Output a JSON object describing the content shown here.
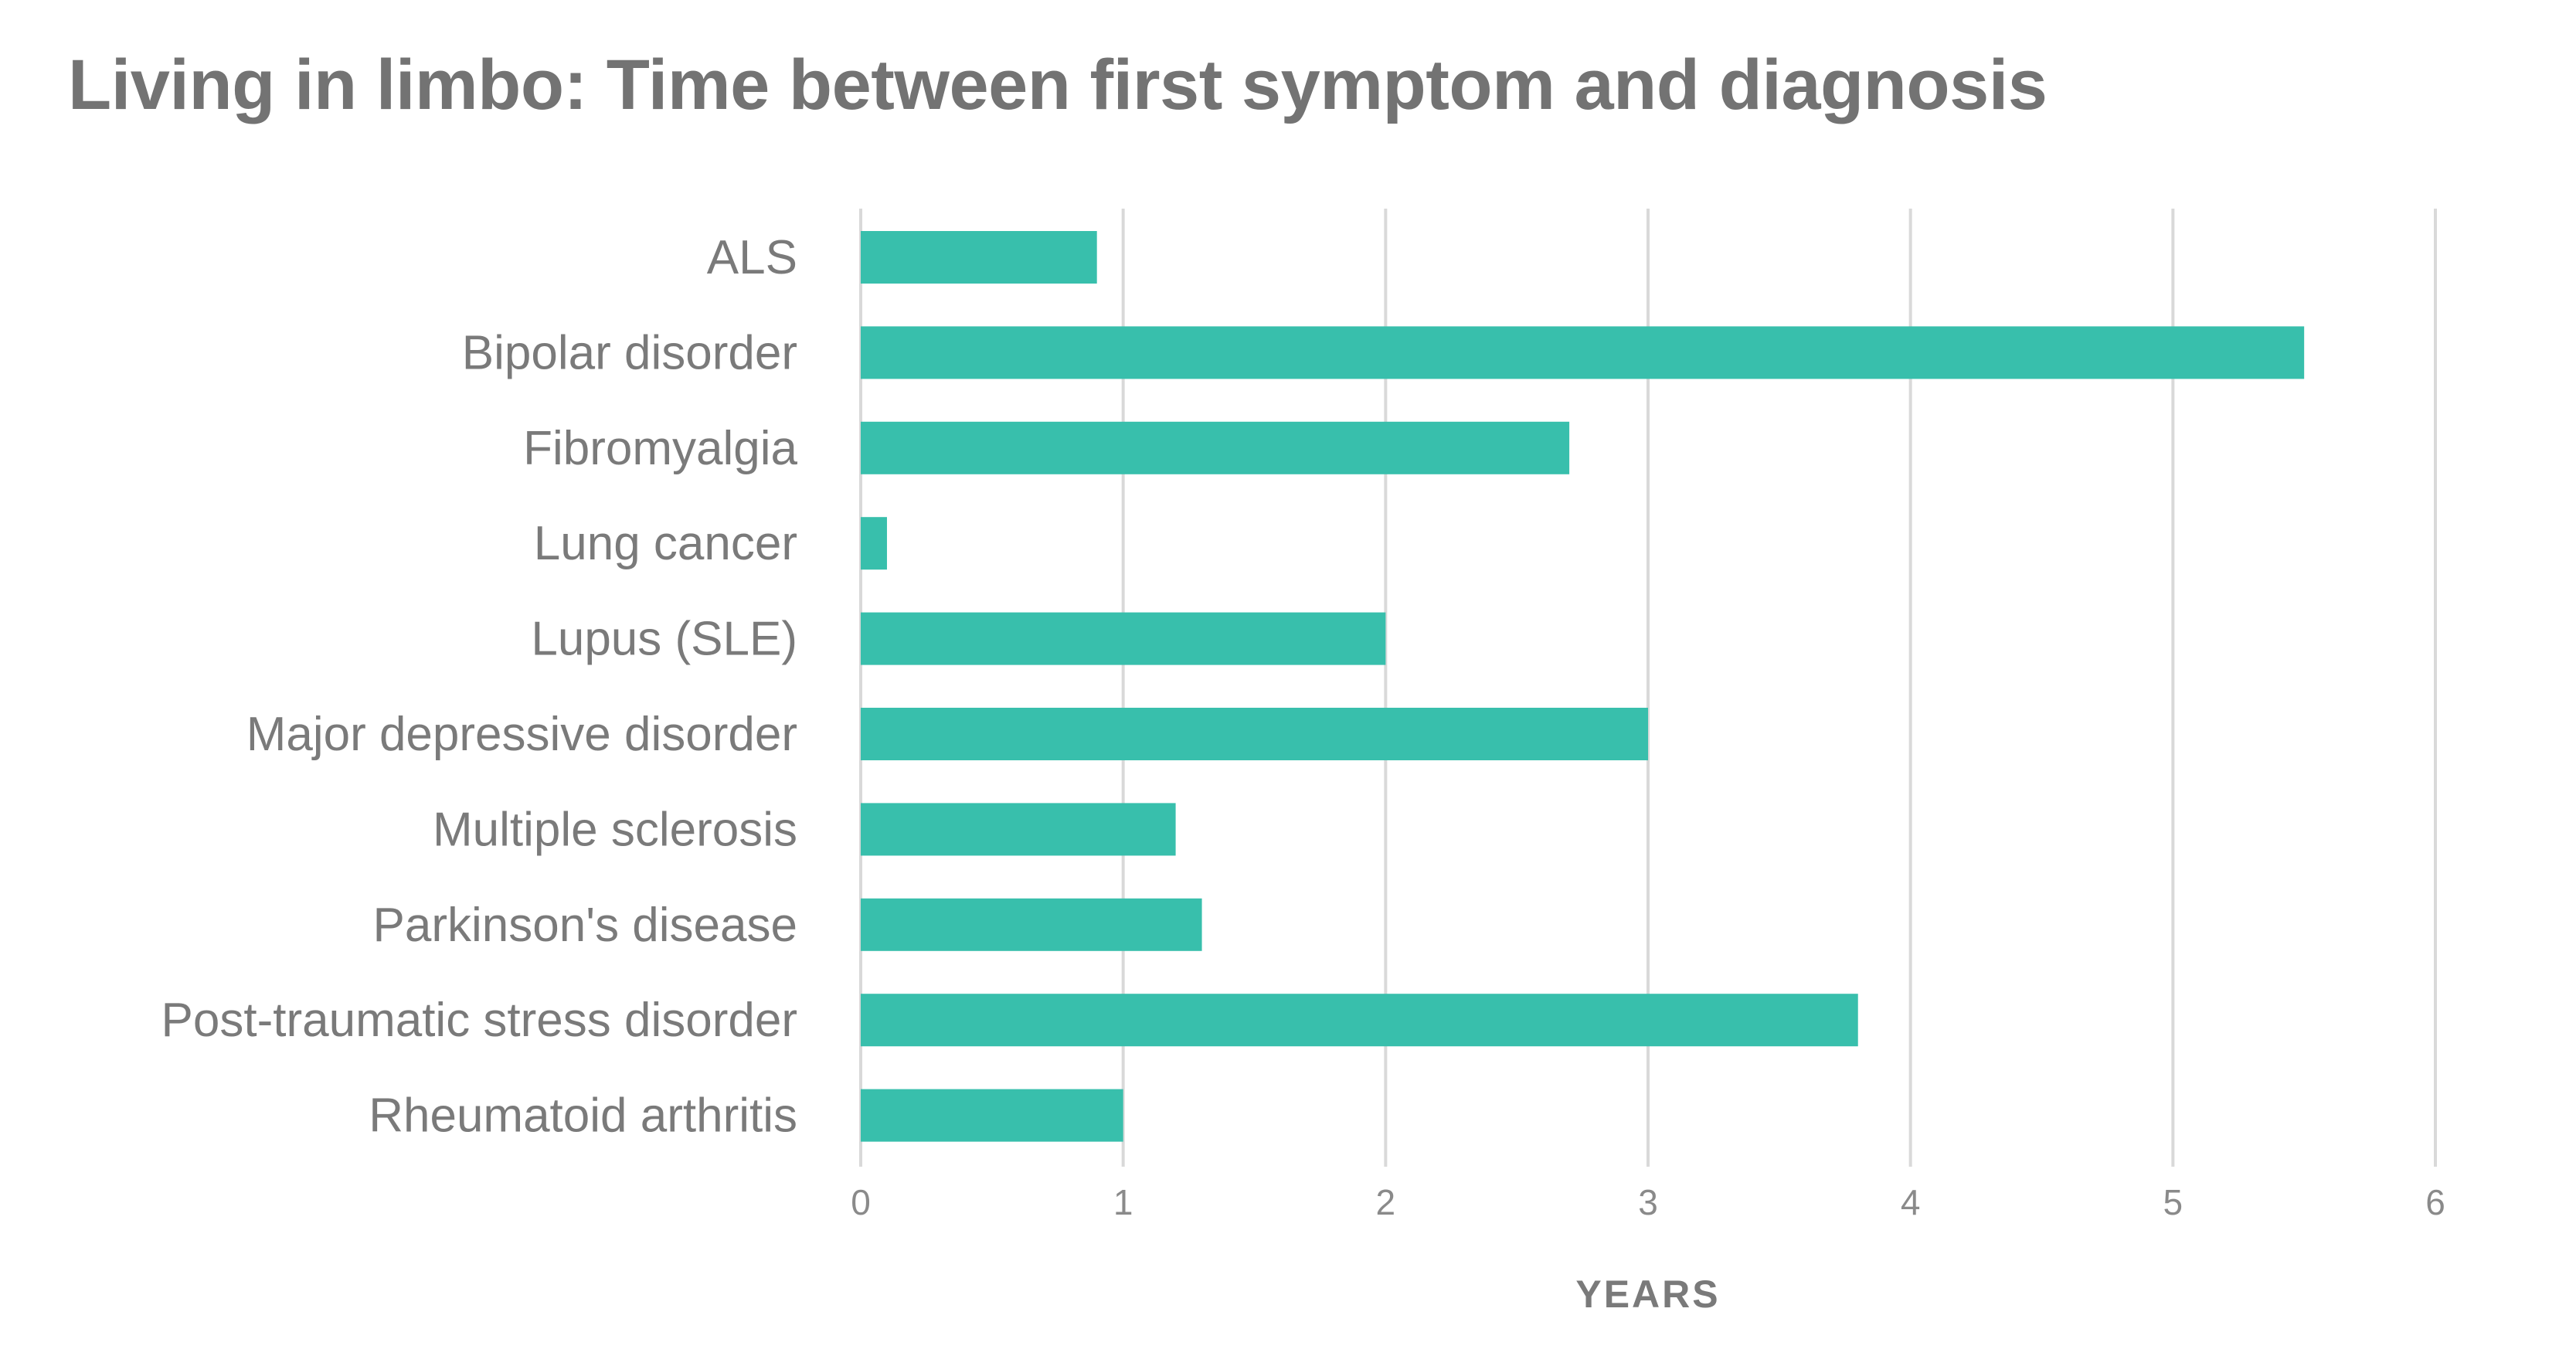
{
  "chart_data": {
    "type": "bar",
    "orientation": "horizontal",
    "title": "Living in limbo: Time between first symptom and diagnosis",
    "xlabel": "YEARS",
    "ylabel": "",
    "categories": [
      "ALS",
      "Bipolar disorder",
      "Fibromyalgia",
      "Lung cancer",
      "Lupus (SLE)",
      "Major depressive disorder",
      "Multiple sclerosis",
      "Parkinson's disease",
      "Post-traumatic stress disorder",
      "Rheumatoid arthritis"
    ],
    "values": [
      0.9,
      5.5,
      2.7,
      0.1,
      2.0,
      3.0,
      1.2,
      1.3,
      3.8,
      1.0
    ],
    "xlim": [
      0,
      6
    ],
    "xticks": [
      "0",
      "1",
      "2",
      "3",
      "4",
      "5",
      "6"
    ],
    "grid": true,
    "legend": "none",
    "colors": {
      "bar": "#38bfac",
      "grid": "#d9d9d9",
      "title": "#737373",
      "labels": "#7a7a7a"
    }
  }
}
